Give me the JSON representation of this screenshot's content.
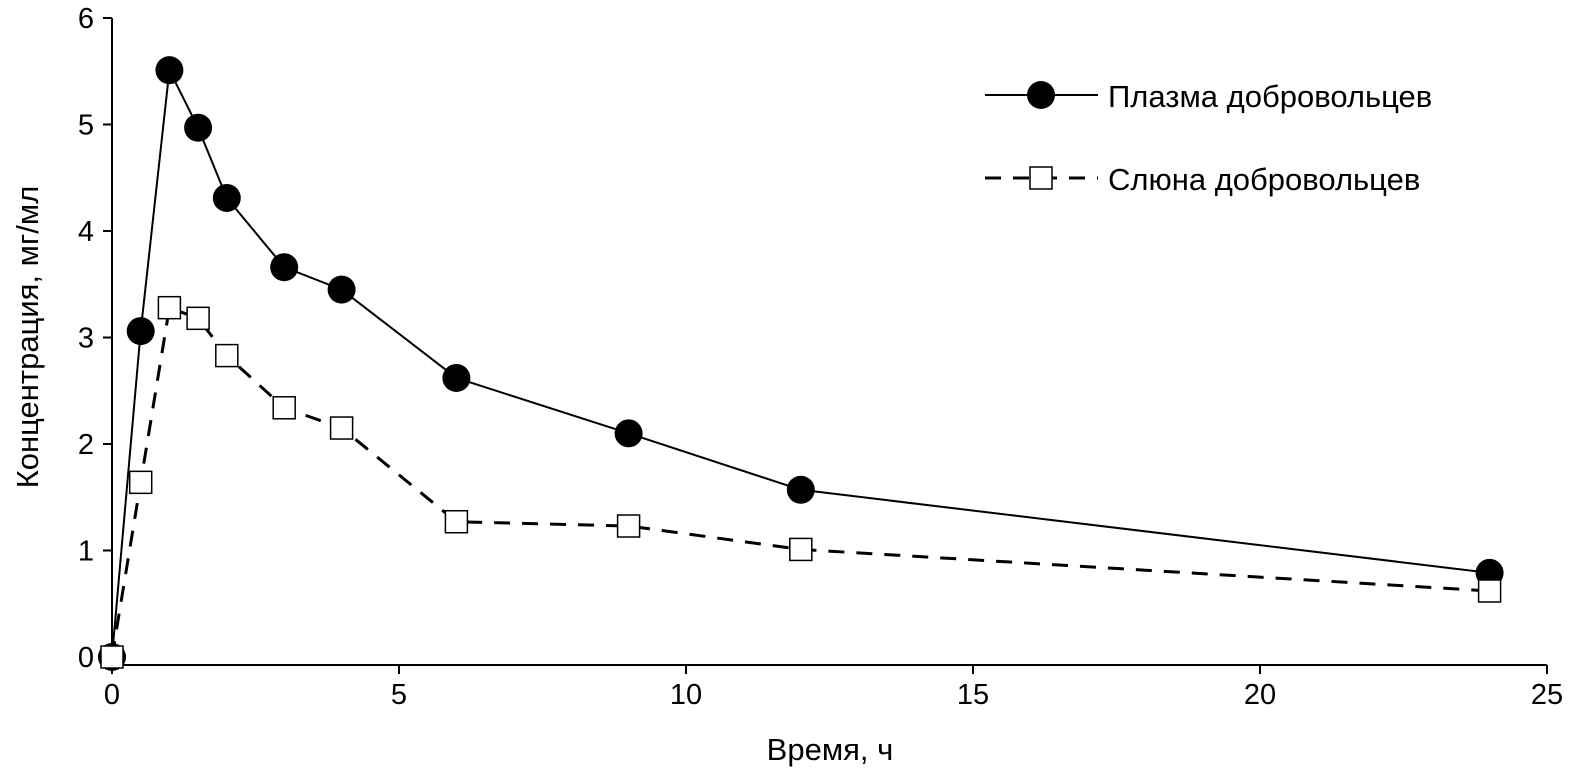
{
  "chart_data": {
    "type": "line",
    "title": "",
    "xlabel": "Время, ч",
    "ylabel": "Концентрация, мг/мл",
    "xlim": [
      0,
      25
    ],
    "ylim": [
      0,
      6
    ],
    "xticks": [
      "0",
      "5",
      "10",
      "15",
      "20",
      "25"
    ],
    "yticks": [
      "0",
      "1",
      "2",
      "3",
      "4",
      "5",
      "6"
    ],
    "grid": false,
    "legend_position": "top-right",
    "x": [
      0,
      0.5,
      1,
      1.5,
      2,
      3,
      4,
      6,
      9,
      12,
      24
    ],
    "series": [
      {
        "name": "Плазма добровольцев",
        "marker": "filled-circle",
        "line": "solid",
        "values": [
          0,
          3.06,
          5.51,
          4.97,
          4.31,
          3.66,
          3.45,
          2.62,
          2.1,
          1.57,
          0.79
        ]
      },
      {
        "name": "Слюна добровольцев",
        "marker": "open-square",
        "line": "dashed",
        "values": [
          0,
          1.64,
          3.28,
          3.18,
          2.83,
          2.34,
          2.15,
          1.27,
          1.23,
          1.01,
          0.62
        ]
      }
    ]
  }
}
